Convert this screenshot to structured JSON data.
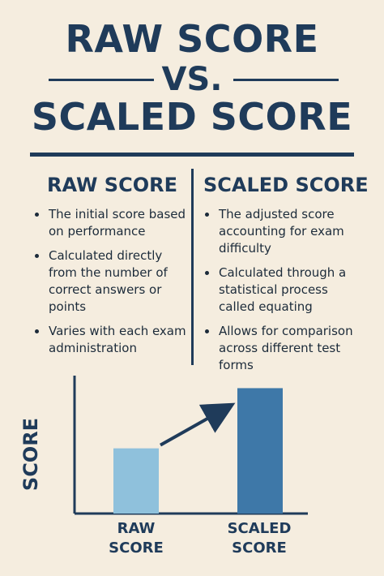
{
  "title": {
    "line1": "RAW SCORE",
    "vs": "VS.",
    "line3": "SCALED SCORE"
  },
  "raw": {
    "heading": "RAW SCORE",
    "bullets": [
      "The initial score based on performance",
      "Calculated directly from the number of correct answers or points",
      "Varies with each exam administration"
    ]
  },
  "scaled": {
    "heading": "SCALED SCORE",
    "bullets": [
      "The adjusted score accounting for exam difficulty",
      "Calculated through a statistical process called equating",
      "Allows for comparison across different test forms"
    ]
  },
  "colors": {
    "navy": "#1f3b5a",
    "background": "#f5eddf",
    "raw_bar": "#8fc1dc",
    "scaled_bar": "#3e78a8"
  },
  "chart_data": {
    "type": "bar",
    "categories": [
      "RAW\nSCORE",
      "SCALED\nSCORE"
    ],
    "category_labels": [
      "RAW",
      "SCORE",
      "SCALED",
      "SCORE"
    ],
    "values": [
      0.52,
      1.0
    ],
    "ylabel": "SCORE",
    "xlabel": "",
    "ylim": [
      0,
      1.1
    ],
    "grid": false,
    "annotation": "arrow-up-right"
  }
}
